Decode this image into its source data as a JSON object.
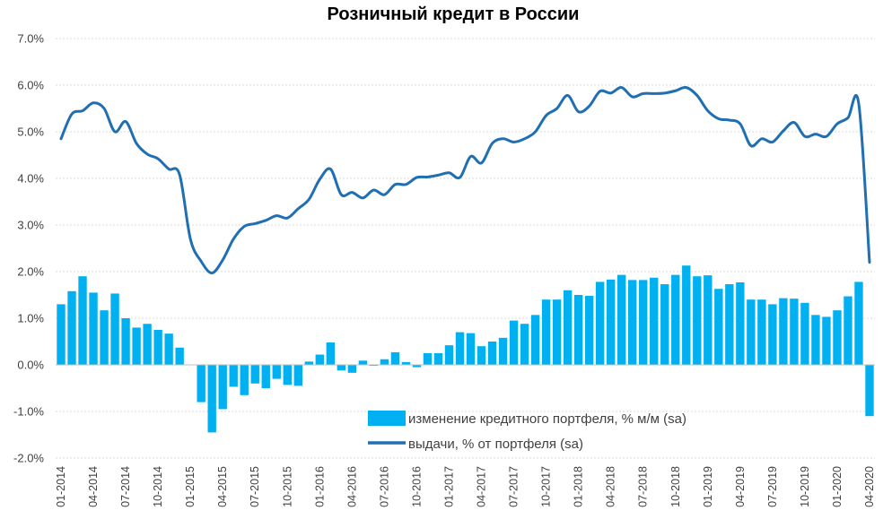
{
  "chart_data": {
    "type": "bar+line",
    "title": "Розничный кредит в России",
    "ylim": [
      -2,
      7
    ],
    "ytick_values": [
      -2,
      -1,
      0,
      1,
      2,
      3,
      4,
      5,
      6,
      7
    ],
    "ytick_labels": [
      "-2.0%",
      "-1.0%",
      "0.0%",
      "1.0%",
      "2.0%",
      "3.0%",
      "4.0%",
      "5.0%",
      "6.0%",
      "7.0%"
    ],
    "categories": [
      "01-2014",
      "02-2014",
      "03-2014",
      "04-2014",
      "05-2014",
      "06-2014",
      "07-2014",
      "08-2014",
      "09-2014",
      "10-2014",
      "11-2014",
      "12-2014",
      "01-2015",
      "02-2015",
      "03-2015",
      "04-2015",
      "05-2015",
      "06-2015",
      "07-2015",
      "08-2015",
      "09-2015",
      "10-2015",
      "11-2015",
      "12-2015",
      "01-2016",
      "02-2016",
      "03-2016",
      "04-2016",
      "05-2016",
      "06-2016",
      "07-2016",
      "08-2016",
      "09-2016",
      "10-2016",
      "11-2016",
      "12-2016",
      "01-2017",
      "02-2017",
      "03-2017",
      "04-2017",
      "05-2017",
      "06-2017",
      "07-2017",
      "08-2017",
      "09-2017",
      "10-2017",
      "11-2017",
      "12-2017",
      "01-2018",
      "02-2018",
      "03-2018",
      "04-2018",
      "05-2018",
      "06-2018",
      "07-2018",
      "08-2018",
      "09-2018",
      "10-2018",
      "11-2018",
      "12-2018",
      "01-2019",
      "02-2019",
      "03-2019",
      "04-2019",
      "05-2019",
      "06-2019",
      "07-2019",
      "08-2019",
      "09-2019",
      "10-2019",
      "11-2019",
      "12-2019",
      "01-2020",
      "02-2020",
      "03-2020",
      "04-2020"
    ],
    "xtick_labels": [
      "01-2014",
      "04-2014",
      "07-2014",
      "10-2014",
      "01-2015",
      "04-2015",
      "07-2015",
      "10-2015",
      "01-2016",
      "04-2016",
      "07-2016",
      "10-2016",
      "01-2017",
      "04-2017",
      "07-2017",
      "10-2017",
      "01-2018",
      "04-2018",
      "07-2018",
      "10-2018",
      "01-2019",
      "04-2019",
      "07-2019",
      "10-2019",
      "01-2020",
      "04-2020"
    ],
    "series": [
      {
        "name": "изменение кредитного портфеля, % м/м (sa)",
        "kind": "bar",
        "color": "#00b0f0",
        "values": [
          1.3,
          1.58,
          1.9,
          1.55,
          1.17,
          1.53,
          1.0,
          0.8,
          0.88,
          0.75,
          0.67,
          0.37,
          0.0,
          -0.8,
          -1.45,
          -0.95,
          -0.47,
          -0.65,
          -0.4,
          -0.5,
          -0.3,
          -0.43,
          -0.45,
          0.07,
          0.22,
          0.48,
          -0.12,
          -0.17,
          0.09,
          -0.02,
          0.12,
          0.27,
          0.06,
          -0.05,
          0.25,
          0.25,
          0.42,
          0.7,
          0.68,
          0.4,
          0.5,
          0.58,
          0.95,
          0.88,
          1.07,
          1.4,
          1.4,
          1.6,
          1.5,
          1.48,
          1.78,
          1.83,
          1.93,
          1.82,
          1.82,
          1.87,
          1.73,
          1.93,
          2.13,
          1.9,
          1.92,
          1.63,
          1.73,
          1.77,
          1.4,
          1.4,
          1.3,
          1.43,
          1.42,
          1.33,
          1.07,
          1.03,
          1.17,
          1.47,
          1.78,
          -1.1
        ]
      },
      {
        "name": "выдачи, % от портфеля (sa)",
        "kind": "line",
        "color": "#1f6fb2",
        "values": [
          4.85,
          5.38,
          5.45,
          5.62,
          5.5,
          5.0,
          5.22,
          4.75,
          4.52,
          4.42,
          4.2,
          4.08,
          2.7,
          2.22,
          1.97,
          2.25,
          2.7,
          2.97,
          3.03,
          3.1,
          3.2,
          3.15,
          3.35,
          3.55,
          3.98,
          4.2,
          3.65,
          3.7,
          3.58,
          3.75,
          3.65,
          3.87,
          3.87,
          4.02,
          4.03,
          4.07,
          4.12,
          4.02,
          4.47,
          4.33,
          4.75,
          4.85,
          4.78,
          4.85,
          5.0,
          5.35,
          5.5,
          5.78,
          5.43,
          5.55,
          5.87,
          5.83,
          5.95,
          5.75,
          5.82,
          5.82,
          5.83,
          5.88,
          5.95,
          5.78,
          5.45,
          5.28,
          5.25,
          5.17,
          4.7,
          4.85,
          4.78,
          5.02,
          5.2,
          4.9,
          4.95,
          4.9,
          5.17,
          5.3,
          5.6,
          2.2
        ]
      }
    ],
    "legend": [
      {
        "label": "изменение кредитного портфеля, % м/м (sa)",
        "marker": "bar"
      },
      {
        "label": "выдачи, % от портфеля (sa)",
        "marker": "line"
      }
    ],
    "legend_position": "lower-right"
  }
}
